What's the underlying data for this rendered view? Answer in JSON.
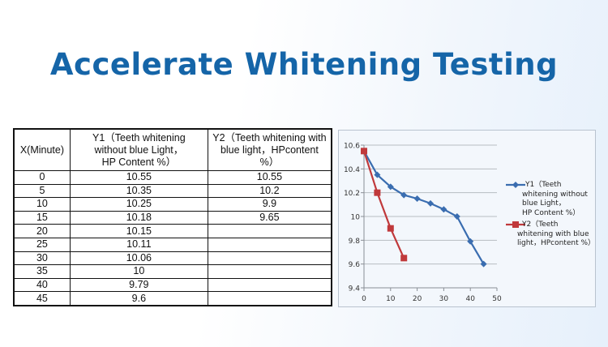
{
  "header": {
    "title": "Accelerate Whitening Testing"
  },
  "table": {
    "headers": [
      "X(Minute)",
      "Y1（Teeth whitening without blue Light，HP Content %）",
      "Y2（Teeth whitening with blue light，HPcontent %）"
    ],
    "header_lines": [
      [
        "X(Minute)"
      ],
      [
        "Y1（Teeth whitening",
        "without blue Light，",
        "HP Content  %）"
      ],
      [
        "Y2（Teeth whitening with",
        "blue light，HPcontent",
        "%）"
      ]
    ],
    "rows": [
      [
        "0",
        "10.55",
        "10.55"
      ],
      [
        "5",
        "10.35",
        "10.2"
      ],
      [
        "10",
        "10.25",
        "9.9"
      ],
      [
        "15",
        "10.18",
        "9.65"
      ],
      [
        "20",
        "10.15",
        ""
      ],
      [
        "25",
        "10.11",
        ""
      ],
      [
        "30",
        "10.06",
        ""
      ],
      [
        "35",
        "10",
        ""
      ],
      [
        "40",
        "9.79",
        ""
      ],
      [
        "45",
        "9.6",
        ""
      ]
    ]
  },
  "chart_data": {
    "type": "line",
    "title": "",
    "xlabel": "",
    "ylabel": "",
    "x": [
      0,
      5,
      10,
      15,
      20,
      25,
      30,
      35,
      40,
      45
    ],
    "xlim": [
      0,
      50
    ],
    "ylim": [
      9.4,
      10.6
    ],
    "x_ticks": [
      0,
      10,
      20,
      30,
      40,
      50
    ],
    "y_ticks": [
      9.4,
      9.6,
      9.8,
      10,
      10.2,
      10.4,
      10.6
    ],
    "y_tick_labels": [
      "9.4",
      "9.6",
      "9.8",
      "10",
      "10.2",
      "10.4",
      "10.6"
    ],
    "grid": "horizontal",
    "legend_position": "right",
    "series": [
      {
        "name": "Y1（Teeth whitening without blue Light，HP Content %）",
        "legend_lines": [
          "Y1（Teeth",
          "whitening without",
          "blue Light，",
          "HP Content  %）"
        ],
        "color": "#3a6db0",
        "marker": "diamond",
        "x": [
          0,
          5,
          10,
          15,
          20,
          25,
          30,
          35,
          40,
          45
        ],
        "values": [
          10.55,
          10.35,
          10.25,
          10.18,
          10.15,
          10.11,
          10.06,
          10,
          9.79,
          9.6
        ]
      },
      {
        "name": "Y2（Teeth whitening with blue light，HPcontent %）",
        "legend_lines": [
          "Y2（Teeth",
          "whitening with blue",
          "light，HPcontent %）"
        ],
        "color": "#c0393b",
        "marker": "square",
        "x": [
          0,
          5,
          10,
          15
        ],
        "values": [
          10.55,
          10.2,
          9.9,
          9.65
        ]
      }
    ]
  }
}
